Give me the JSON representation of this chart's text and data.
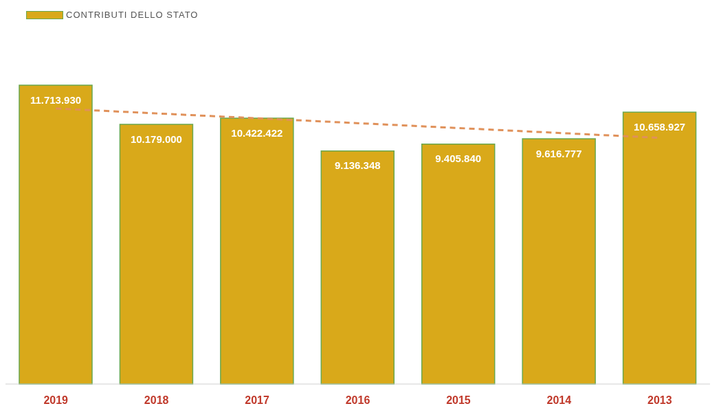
{
  "chart_data": {
    "type": "bar",
    "categories": [
      "2019",
      "2018",
      "2017",
      "2016",
      "2015",
      "2014",
      "2013"
    ],
    "series": [
      {
        "name": "CONTRIBUTI DELLO STATO",
        "color": "#d9a91a",
        "values": [
          11713930,
          10179000,
          10422422,
          9136348,
          9405840,
          9616777,
          10658927
        ],
        "value_labels": [
          "11.713.930",
          "10.179.000",
          "10.422.422",
          "9.136.348",
          "9.405.840",
          "9.616.777",
          "10.658.927"
        ]
      },
      {
        "type": "line",
        "color": "#e0915a",
        "line_style": "dashed",
        "values": [
          10800000,
          null,
          null,
          null,
          null,
          null,
          9650000
        ]
      }
    ],
    "legend": "top left",
    "marker": "none"
  }
}
